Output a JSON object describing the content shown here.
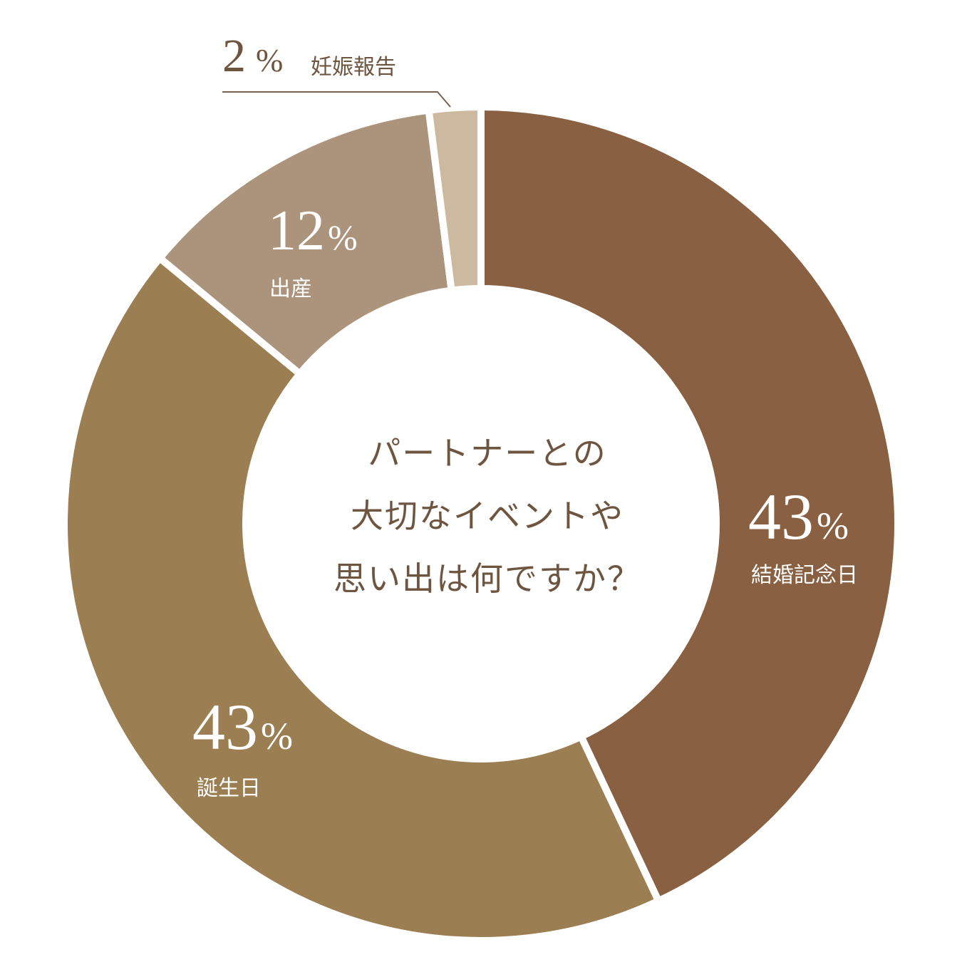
{
  "chart_data": {
    "type": "pie",
    "title": "パートナーとの大切なイベントや思い出は何ですか？",
    "title_lines": [
      "パートナーとの",
      "大切なイベントや",
      "思い出は何ですか？"
    ],
    "slices": [
      {
        "label": "結婚記念日",
        "value": 43,
        "display": "43",
        "unit": "%",
        "color": "#8a6042"
      },
      {
        "label": "誕生日",
        "value": 43,
        "display": "43",
        "unit": "%",
        "color": "#9b7e52"
      },
      {
        "label": "出産",
        "value": 12,
        "display": "12",
        "unit": "%",
        "color": "#ab937c"
      },
      {
        "label": "妊娠報告",
        "value": 2,
        "display": "2",
        "unit": "%",
        "color": "#cdb9a0"
      }
    ],
    "donut": true,
    "start": "top",
    "direction": "clockwise"
  }
}
